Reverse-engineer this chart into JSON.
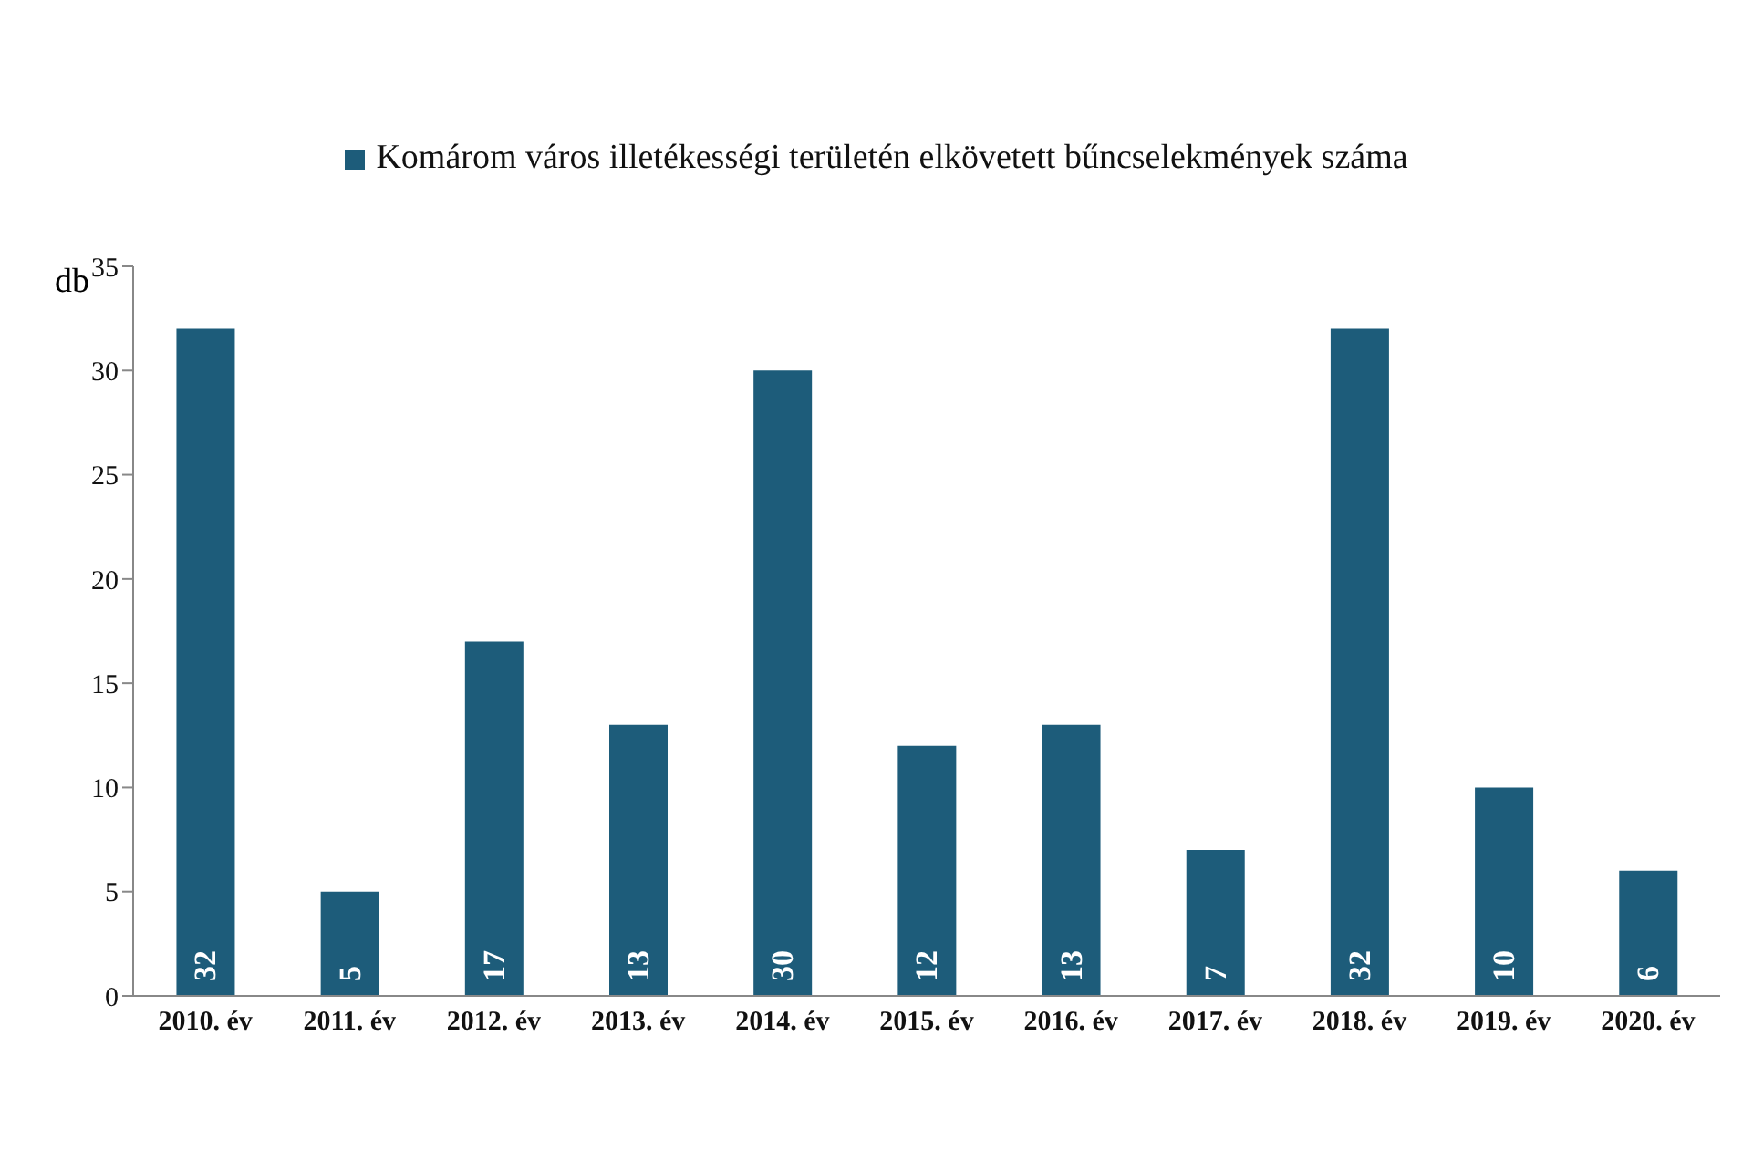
{
  "chart_data": {
    "type": "bar",
    "ylabel": "db",
    "categories": [
      "2010. év",
      "2011. év",
      "2012. év",
      "2013. év",
      "2014. év",
      "2015. év",
      "2016. év",
      "2017. év",
      "2018. év",
      "2019. év",
      "2020. év"
    ],
    "series": [
      {
        "name": "Komárom város illetékességi területén elkövetett bűncselekmények száma",
        "color": "#1d5c7a",
        "values": [
          32,
          5,
          17,
          13,
          30,
          12,
          13,
          7,
          32,
          10,
          6
        ]
      }
    ],
    "ylim": [
      0,
      35
    ],
    "yticks": [
      0,
      5,
      10,
      15,
      20,
      25,
      30,
      35
    ],
    "data_labels": true,
    "legend": "top",
    "grid": false
  }
}
